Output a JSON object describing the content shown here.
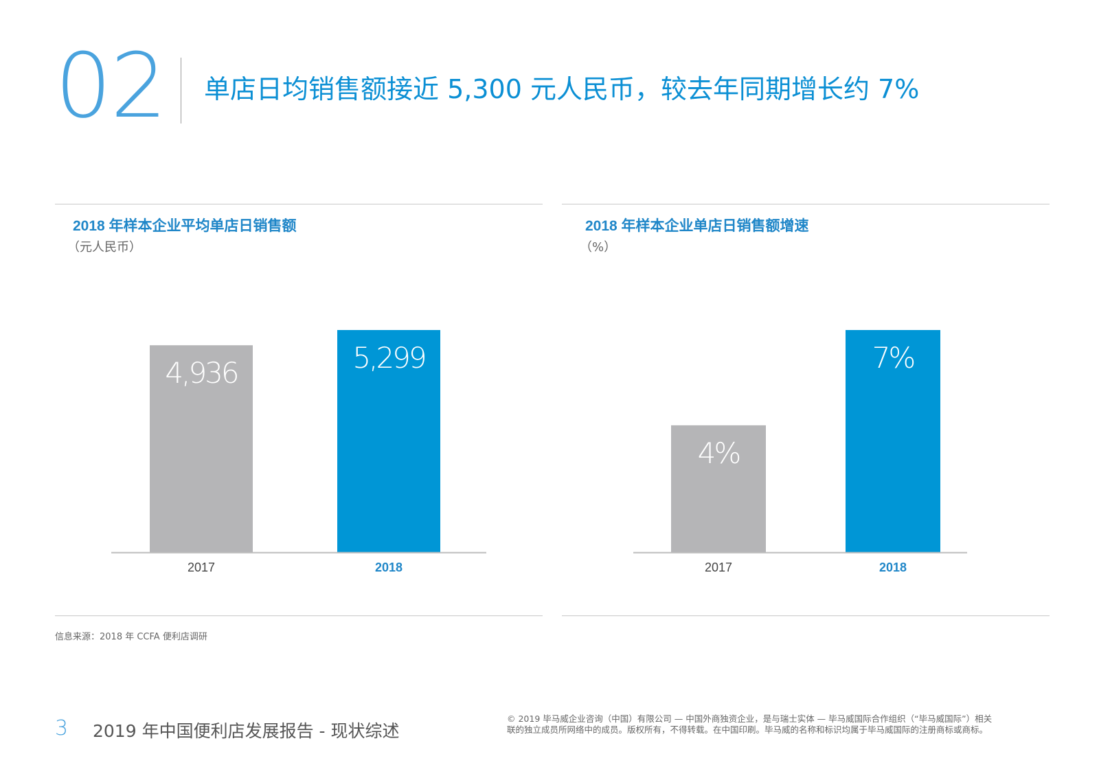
{
  "header": {
    "section_number": "02",
    "headline": "单店日均销售额接近 5,300 元人民币，较去年同期增长约 7%"
  },
  "colors": {
    "accent": "#0096d6",
    "grey_bar": "#b5b5b7",
    "title_blue": "#1f86c8"
  },
  "panels": [
    {
      "title": "2018 年样本企业平均单店日销售额",
      "unit": "（元人民币）"
    },
    {
      "title": "2018 年样本企业单店日销售额增速",
      "unit": "（%）"
    }
  ],
  "chart_data": [
    {
      "type": "bar",
      "title": "2018 年样本企业平均单店日销售额",
      "ylabel": "（元人民币）",
      "categories": [
        "2017",
        "2018"
      ],
      "values": [
        4936,
        5299
      ],
      "value_labels": [
        "4,936",
        "5,299"
      ],
      "bar_colors": [
        "#b5b5b7",
        "#0096d6"
      ],
      "ylim": [
        0,
        5299
      ],
      "grid": false,
      "legend": "none"
    },
    {
      "type": "bar",
      "title": "2018 年样本企业单店日销售额增速",
      "ylabel": "（%）",
      "categories": [
        "2017",
        "2018"
      ],
      "values": [
        4,
        7
      ],
      "value_labels": [
        "4%",
        "7%"
      ],
      "bar_colors": [
        "#b5b5b7",
        "#0096d6"
      ],
      "ylim": [
        0,
        7
      ],
      "grid": false,
      "legend": "none"
    }
  ],
  "source": "信息来源：2018 年 CCFA 便利店调研",
  "footer": {
    "page_number": "3",
    "report_title": "2019 年中国便利店发展报告 - 现状综述",
    "copyright_line1": "© 2019 毕马威企业咨询（中国）有限公司 — 中国外商独资企业，是与瑞士实体 — 毕马威国际合作组织（“毕马威国际”）相关",
    "copyright_line2": "联的独立成员所网络中的成员。版权所有，不得转载。在中国印刷。毕马威的名称和标识均属于毕马威国际的注册商标或商标。"
  }
}
